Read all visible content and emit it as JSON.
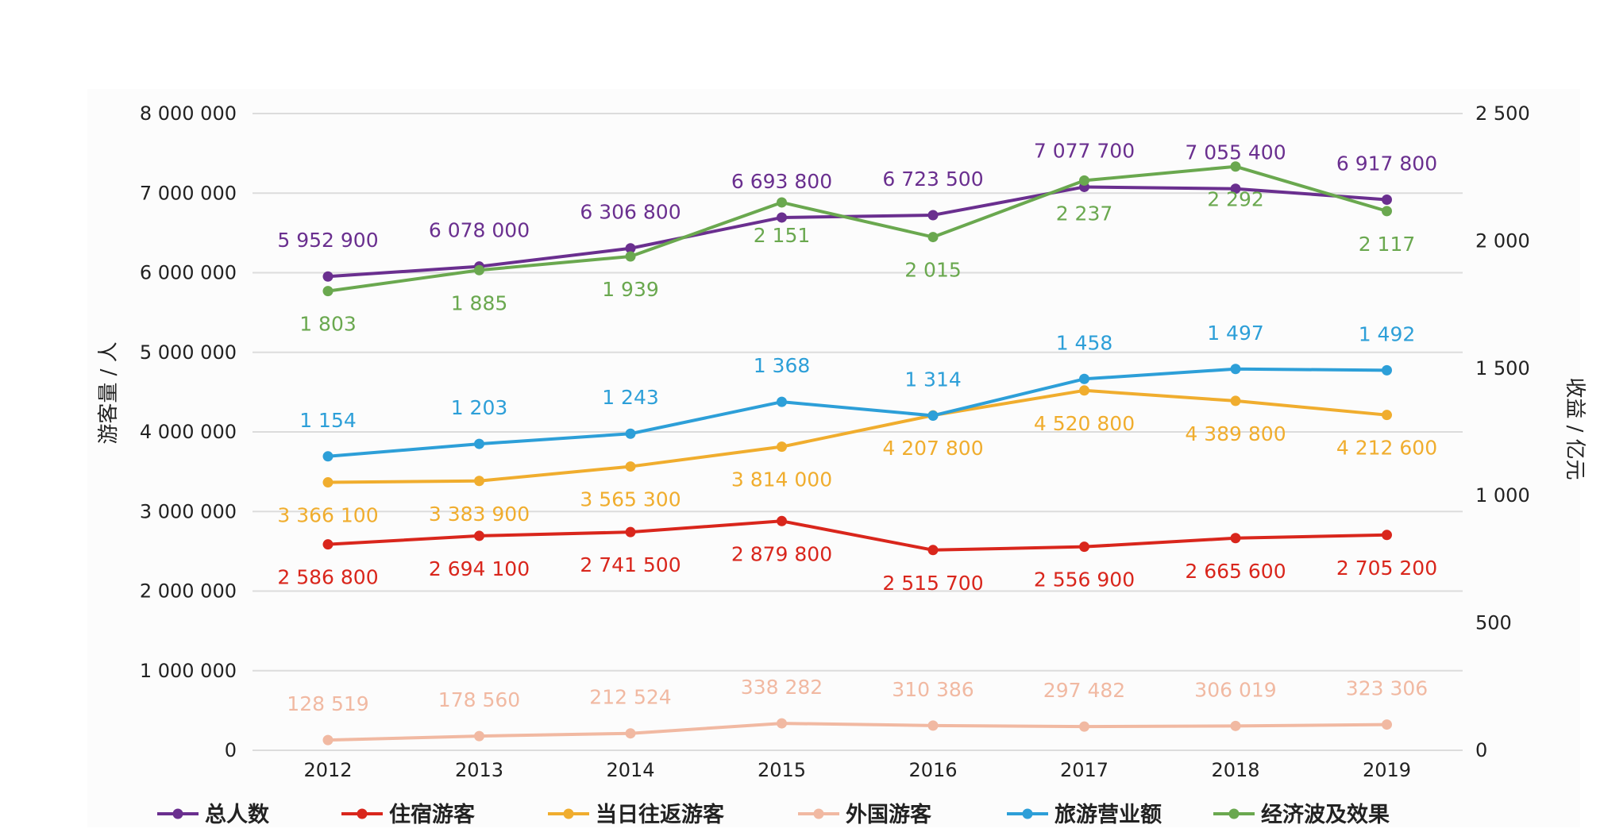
{
  "chart_data": {
    "type": "line",
    "categories": [
      "2012",
      "2013",
      "2014",
      "2015",
      "2016",
      "2017",
      "2018",
      "2019"
    ],
    "y_left": {
      "label": "游客量 / 人",
      "ylim": [
        0,
        8000000
      ],
      "ticks": [
        0,
        1000000,
        2000000,
        3000000,
        4000000,
        5000000,
        6000000,
        7000000,
        8000000
      ],
      "tick_labels": [
        "0",
        "1 000 000",
        "2 000 000",
        "3 000 000",
        "4 000 000",
        "5 000 000",
        "6 000 000",
        "7 000 000",
        "8 000 000"
      ]
    },
    "y_right": {
      "label": "收益 / 亿元",
      "ylim": [
        0,
        2500
      ],
      "ticks": [
        0,
        500,
        1000,
        1500,
        2000,
        2500
      ],
      "tick_labels": [
        "0",
        "500",
        "1 000",
        "1 500",
        "2 000",
        "2 500"
      ]
    },
    "grid": true,
    "legend_position": "bottom",
    "series": [
      {
        "name": "总人数",
        "axis": "left",
        "color": "#6a2f8f",
        "values": [
          5952900,
          6078000,
          6306800,
          6693800,
          6723500,
          7077700,
          7055400,
          6917800
        ],
        "labels": [
          "5 952 900",
          "6 078 000",
          "6 306 800",
          "6 693 800",
          "6 723 500",
          "7 077 700",
          "7 055 400",
          "6 917 800"
        ],
        "label_pos": "above"
      },
      {
        "name": "住宿游客",
        "axis": "left",
        "color": "#d9261c",
        "values": [
          2586800,
          2694100,
          2741500,
          2879800,
          2515700,
          2556900,
          2665600,
          2705200
        ],
        "labels": [
          "2 586 800",
          "2 694 100",
          "2 741 500",
          "2 879 800",
          "2 515 700",
          "2 556 900",
          "2 665 600",
          "2 705 200"
        ],
        "label_pos": "below"
      },
      {
        "name": "当日往返游客",
        "axis": "left",
        "color": "#f0ad2e",
        "values": [
          3366100,
          3383900,
          3565300,
          3814000,
          4207800,
          4520800,
          4389800,
          4212600
        ],
        "labels": [
          "3 366 100",
          "3 383 900",
          "3 565 300",
          "3 814 000",
          "4 207 800",
          "4 520 800",
          "4 389 800",
          "4 212 600"
        ],
        "label_pos": "below"
      },
      {
        "name": "外国游客",
        "axis": "left",
        "color": "#f1b9a2",
        "values": [
          128519,
          178560,
          212524,
          338282,
          310386,
          297482,
          306019,
          323306
        ],
        "labels": [
          "128 519",
          "178 560",
          "212 524",
          "338 282",
          "310 386",
          "297 482",
          "306 019",
          "323 306"
        ],
        "label_pos": "above"
      },
      {
        "name": "旅游营业额",
        "axis": "right",
        "color": "#2d9fd8",
        "values": [
          1154,
          1203,
          1243,
          1368,
          1314,
          1458,
          1497,
          1492
        ],
        "labels": [
          "1 154",
          "1 203",
          "1 243",
          "1 368",
          "1 314",
          "1 458",
          "1 497",
          "1 492"
        ],
        "label_pos": "above"
      },
      {
        "name": "经济波及效果",
        "axis": "right",
        "color": "#6aa84f",
        "values": [
          1803,
          1885,
          1939,
          2151,
          2015,
          2237,
          2292,
          2117
        ],
        "labels": [
          "1 803",
          "1 885",
          "1 939",
          "2 151",
          "2 015",
          "2 237",
          "2 292",
          "2 117"
        ],
        "label_pos": "below"
      }
    ]
  }
}
